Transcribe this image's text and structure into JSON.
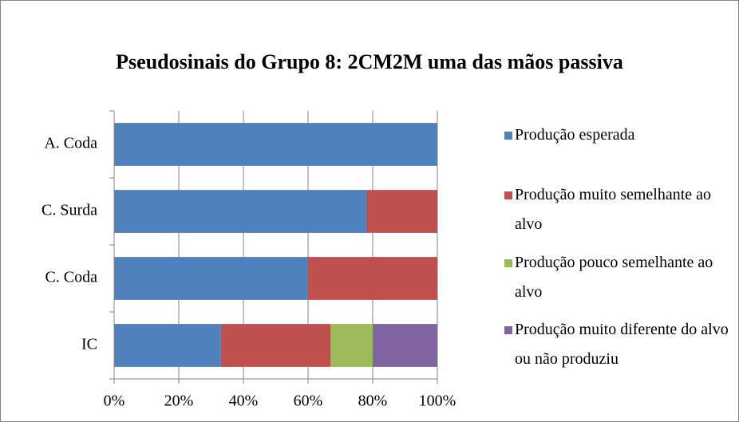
{
  "chart_data": {
    "type": "stacked-bar-horizontal",
    "title": "Pseudosinais do Grupo 8: 2CM2M uma das mãos passiva",
    "categories": [
      "A. Coda",
      "C. Surda",
      "C. Coda",
      "IC"
    ],
    "series": [
      {
        "name": "Produção esperada",
        "color": "#4f81bd",
        "values": [
          100,
          78,
          60,
          33
        ]
      },
      {
        "name": "Produção muito semelhante ao alvo",
        "color": "#c0504d",
        "values": [
          0,
          22,
          40,
          34
        ]
      },
      {
        "name": "Produção pouco semelhante ao alvo",
        "color": "#9bbb59",
        "values": [
          0,
          0,
          0,
          13
        ]
      },
      {
        "name": "Produção muito diferente do alvo ou não produziu",
        "color": "#8064a2",
        "values": [
          0,
          0,
          0,
          20
        ]
      }
    ],
    "xlim": [
      0,
      100
    ],
    "xticks": [
      {
        "value": 0,
        "label": "0%"
      },
      {
        "value": 20,
        "label": "20%"
      },
      {
        "value": 40,
        "label": "40%"
      },
      {
        "value": 60,
        "label": "60%"
      },
      {
        "value": 80,
        "label": "80%"
      },
      {
        "value": 100,
        "label": "100%"
      }
    ],
    "grid": true,
    "legend": "right"
  }
}
